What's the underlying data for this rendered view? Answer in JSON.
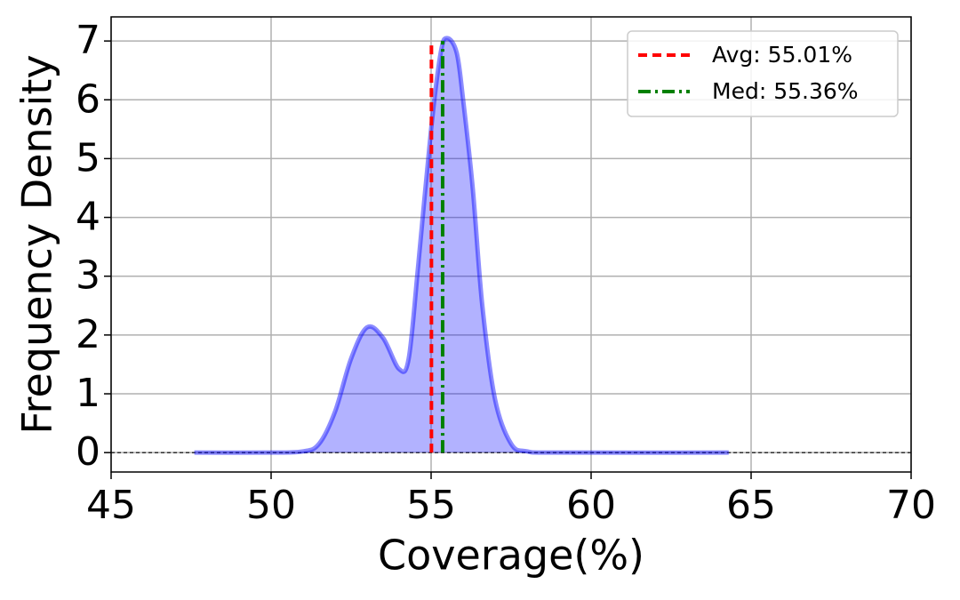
{
  "chart_data": {
    "type": "density",
    "x_label": "Coverage(%)",
    "y_label": "Frequency Density",
    "x": [
      47.6,
      50,
      51,
      51.5,
      52,
      52.5,
      53,
      53.5,
      54,
      54.3,
      54.6,
      55,
      55.3,
      55.5,
      55.8,
      56,
      56.3,
      56.6,
      57,
      57.5,
      58,
      59,
      64.3
    ],
    "series": [
      {
        "color": "#0000ff",
        "values": [
          0,
          0,
          0.02,
          0.15,
          0.7,
          1.6,
          2.13,
          1.95,
          1.42,
          1.6,
          3.2,
          5.5,
          6.8,
          7.05,
          6.8,
          6.0,
          4.5,
          2.5,
          0.9,
          0.15,
          0.02,
          0,
          0
        ]
      }
    ],
    "vlines": [
      {
        "name": "Avg: 55.01%",
        "value": 55.01,
        "color": "#ff0000",
        "style": "dashed"
      },
      {
        "name": "Med: 55.36%",
        "value": 55.36,
        "color": "#008000",
        "style": "dashdot"
      }
    ],
    "xlim": [
      45,
      70
    ],
    "xticks": [
      45,
      50,
      55,
      60,
      65,
      70
    ],
    "ylim": [
      -0.33,
      7.41
    ],
    "yticks": [
      0,
      1,
      2,
      3,
      4,
      5,
      6,
      7
    ],
    "grid": true,
    "legend": "upper right"
  }
}
